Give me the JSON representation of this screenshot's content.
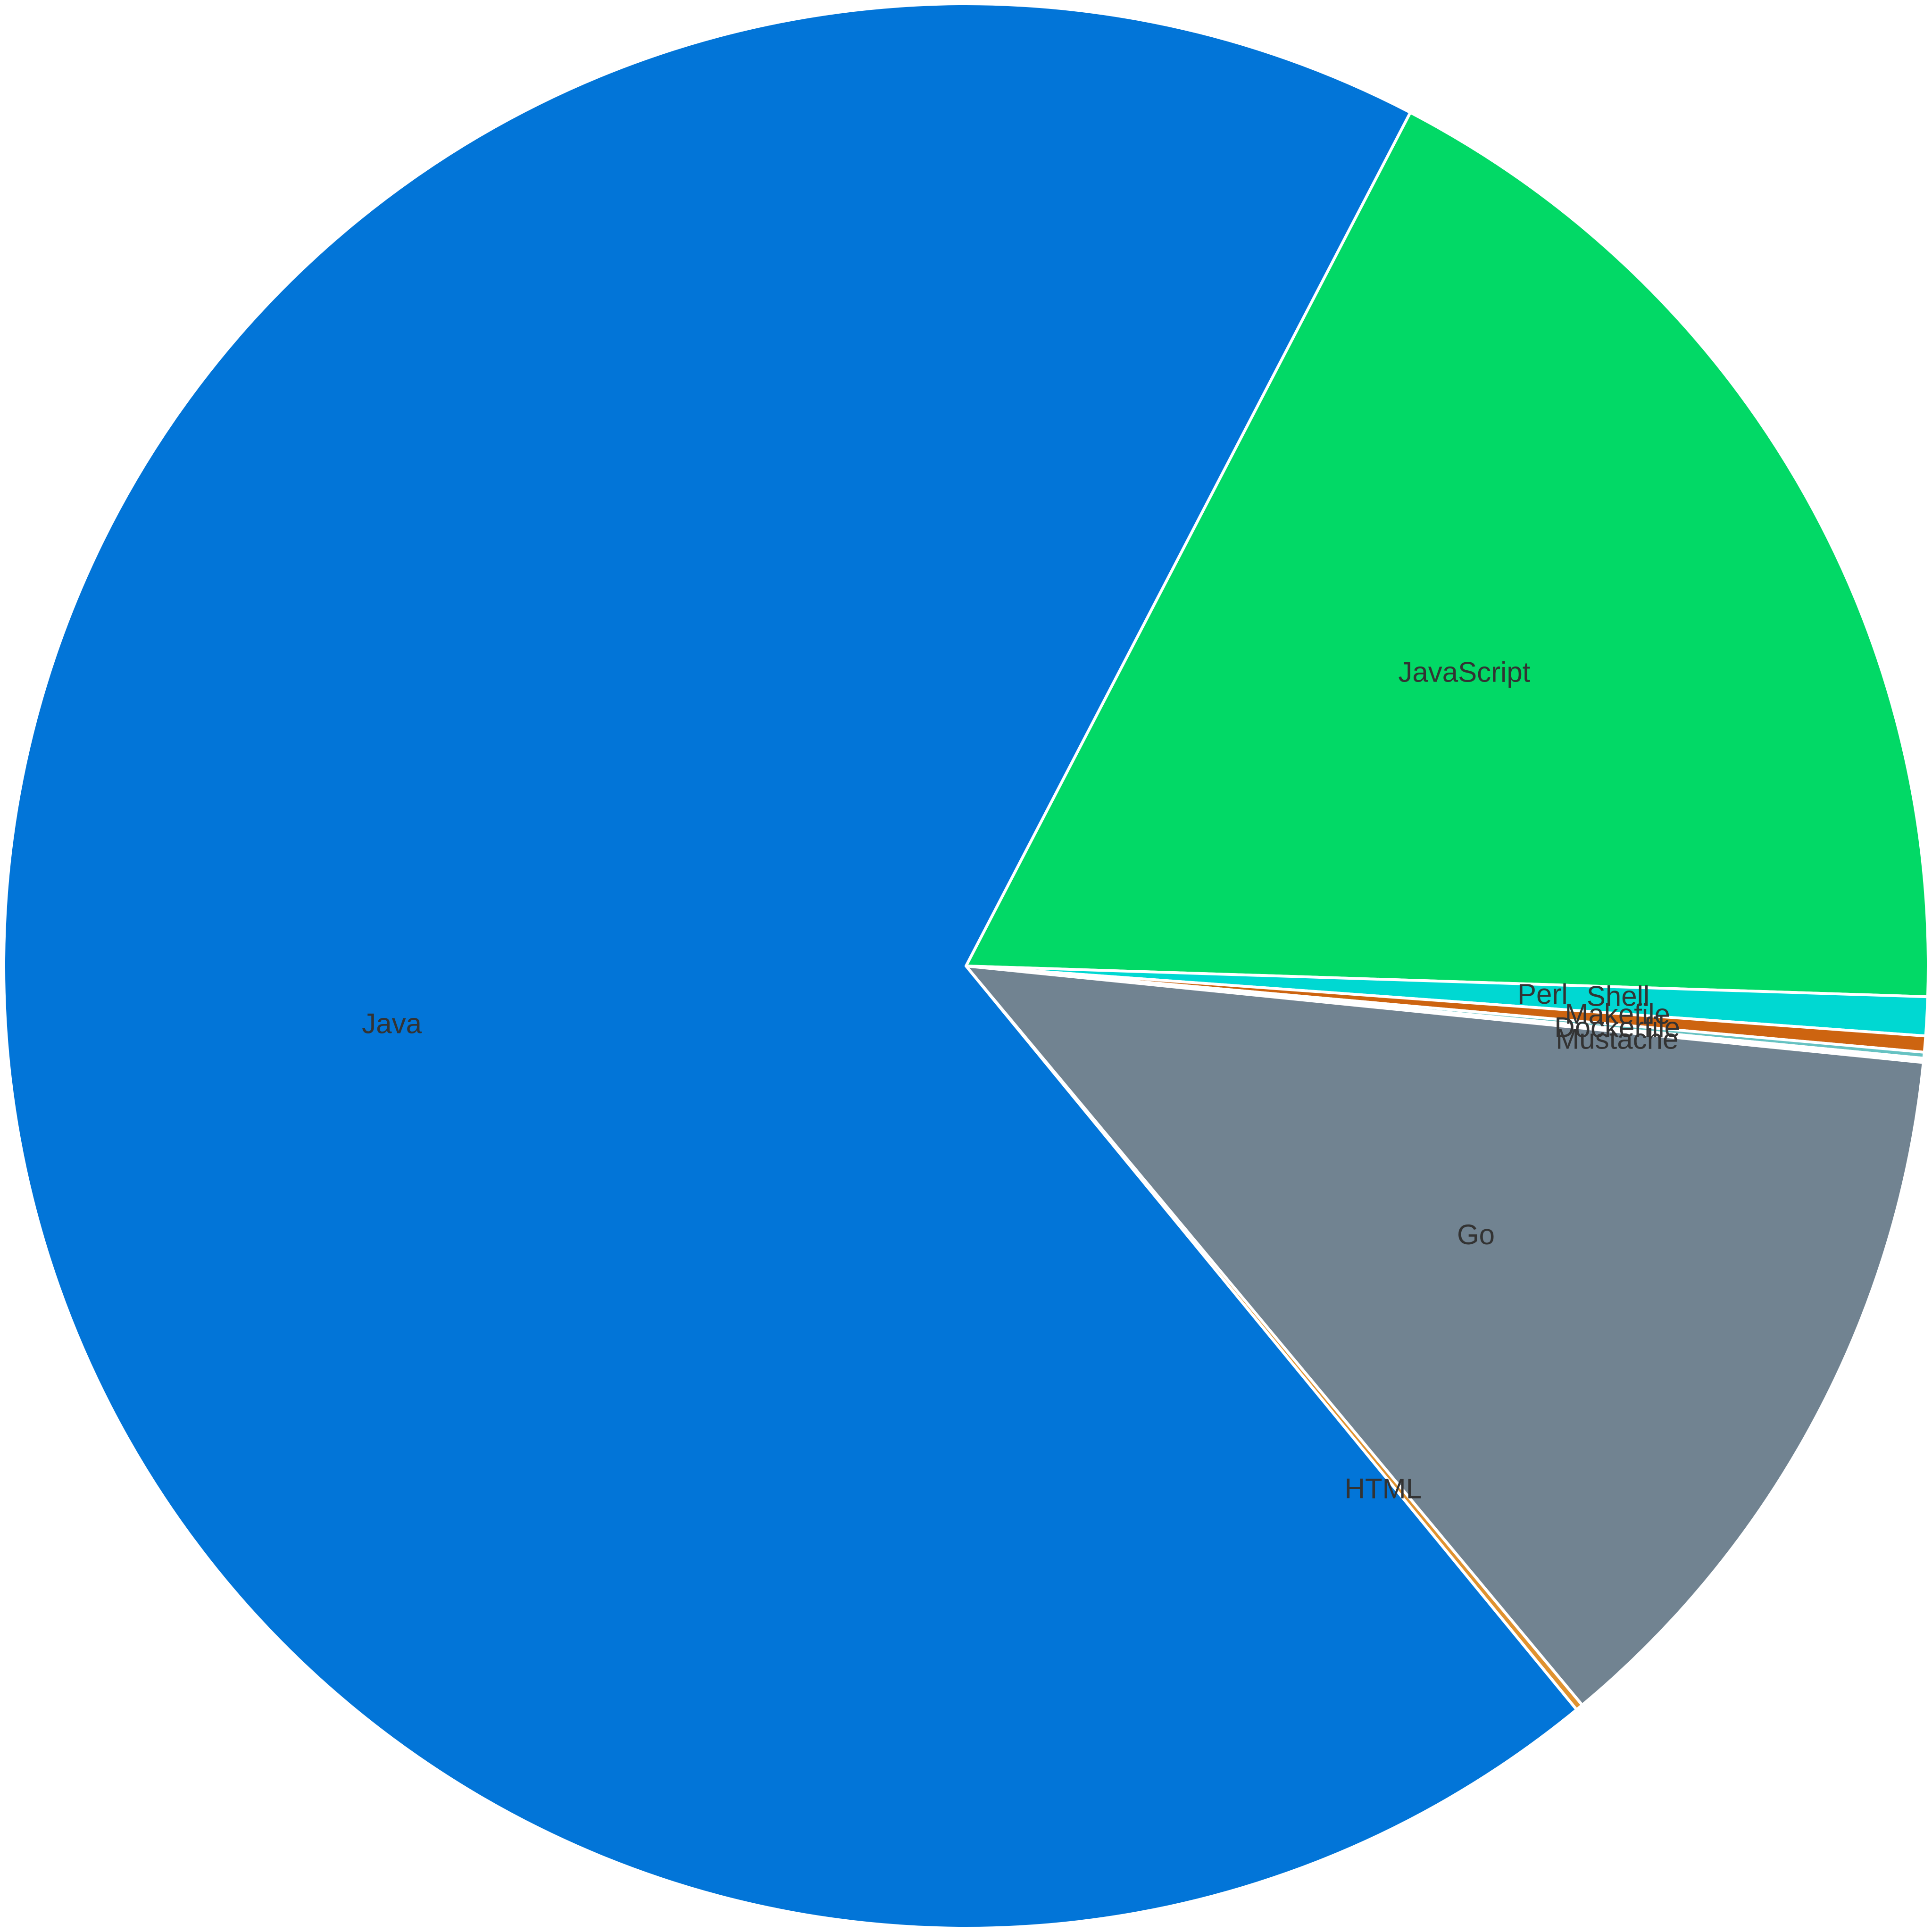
{
  "chart_data": {
    "type": "pie",
    "title": "",
    "legend": "none",
    "start_angle_deg": 27.5,
    "direction": "clockwise",
    "slices": [
      {
        "label": "JavaScript",
        "value": 17.87,
        "color": "#02d966",
        "show_label": true
      },
      {
        "label": "Perl",
        "value": 0.65,
        "color": "#00d8d2",
        "show_label": true
      },
      {
        "label": "Shell",
        "value": 0.27,
        "color": "#cd6410",
        "show_label": true
      },
      {
        "label": "Makefile",
        "value": 0.1,
        "color": "#66c2c2",
        "show_label": true
      },
      {
        "label": "Dockerfile",
        "value": 0.04,
        "color": "#3a7d8c",
        "show_label": true
      },
      {
        "label": "Mustache",
        "value": 0.03,
        "color": "#9dc58b",
        "show_label": true
      },
      {
        "label": "Go",
        "value": 12.34,
        "color": "#718391",
        "show_label": true
      },
      {
        "label": "HTML",
        "value": 0.12,
        "color": "#e0922f",
        "show_label": true
      },
      {
        "label": "Java",
        "value": 68.58,
        "color": "#0275d8",
        "show_label": true
      }
    ]
  }
}
